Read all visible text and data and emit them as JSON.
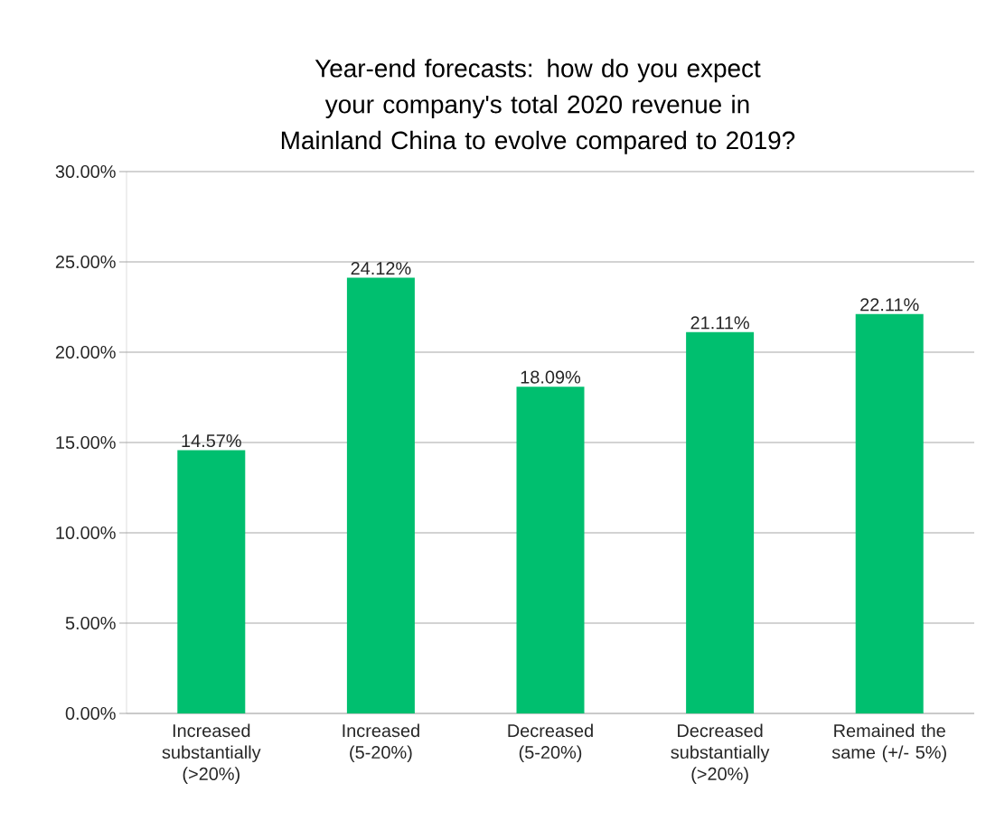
{
  "chart_data": {
    "type": "bar",
    "title": "Year-end forecasts:  how do you expect your company's total 2020 revenue in Mainland China to evolve compared to 2019?",
    "categories": [
      "Increased substantially (>20%)",
      "Increased (5-20%)",
      "Decreased (5-20%)",
      "Decreased substantially (>20%)",
      "Remained the same (+/- 5%)"
    ],
    "values": [
      14.57,
      24.12,
      18.09,
      21.11,
      22.11
    ],
    "value_labels": [
      "14.57%",
      "24.12%",
      "18.09%",
      "21.11%",
      "22.11%"
    ],
    "color": "#00bf6f",
    "ylim": [
      0,
      30
    ],
    "yticks": [
      {
        "value": 0,
        "label": "0.00%"
      },
      {
        "value": 5,
        "label": "5.00%"
      },
      {
        "value": 10,
        "label": "10.00%"
      },
      {
        "value": 15,
        "label": "15.00%"
      },
      {
        "value": 20,
        "label": "20.00%"
      },
      {
        "value": 25,
        "label": "25.00%"
      },
      {
        "value": 30,
        "label": "30.00%"
      }
    ],
    "grid": "y"
  }
}
